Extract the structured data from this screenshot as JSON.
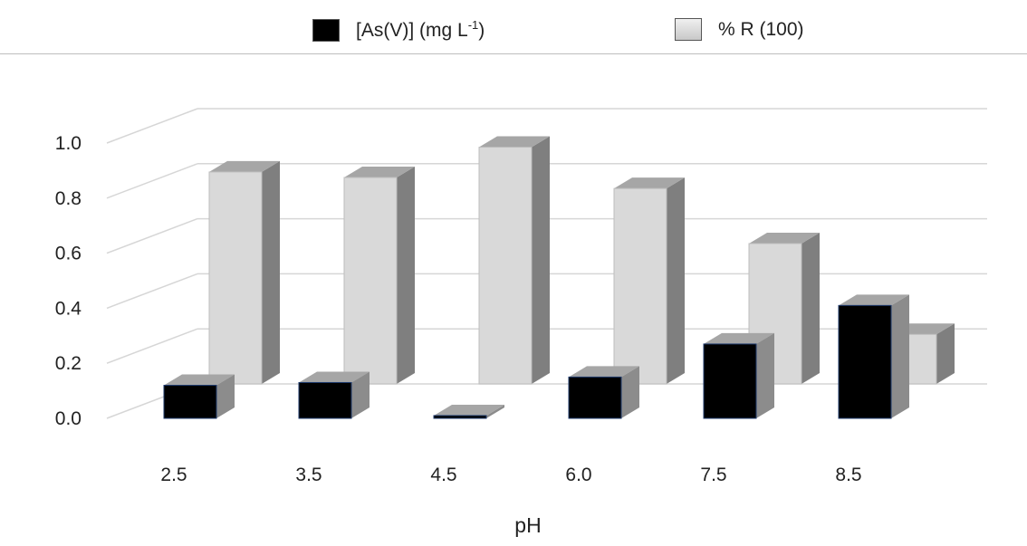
{
  "chart_data": {
    "type": "bar",
    "view": "3d-clustered-columns",
    "categories": [
      "2.5",
      "3.5",
      "4.5",
      "6.0",
      "7.5",
      "8.5"
    ],
    "series": [
      {
        "name": "[As(V)] (mg L",
        "superscript": "-1",
        "suffix": ")",
        "color": "#000000",
        "side_color": "#8c8c8c",
        "top_color": "#a6a6a6",
        "values": [
          0.12,
          0.13,
          0.01,
          0.15,
          0.27,
          0.41
        ]
      },
      {
        "name": "% R (100)",
        "color": "#d9d9d9",
        "side_color": "#7f7f7f",
        "top_color": "#a6a6a6",
        "values": [
          0.77,
          0.75,
          0.86,
          0.71,
          0.51,
          0.18
        ]
      }
    ],
    "yticks": [
      "0.0",
      "0.2",
      "0.4",
      "0.6",
      "0.8",
      "1.0"
    ],
    "ylim": [
      0,
      1.0
    ],
    "xlabel": "pH",
    "ylabel": "",
    "title": "",
    "grid": true,
    "legend_position": "top"
  }
}
